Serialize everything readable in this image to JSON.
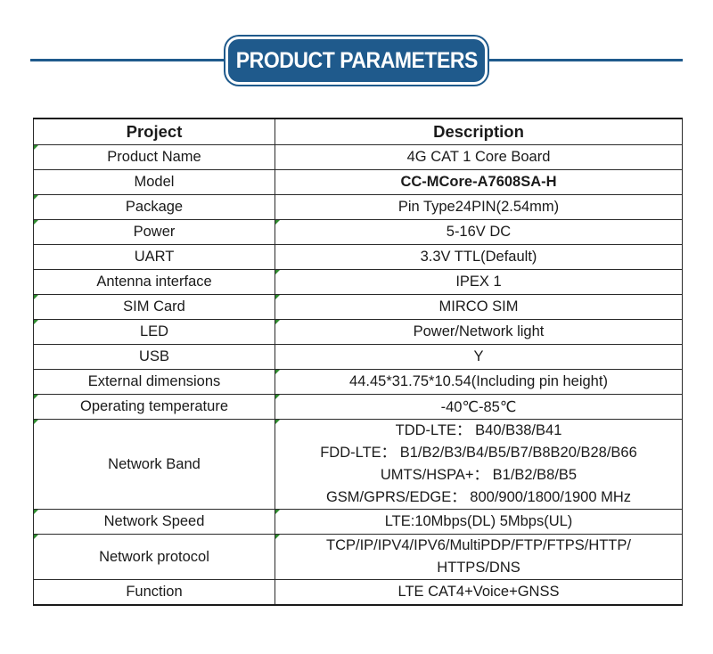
{
  "header": {
    "title": "PRODUCT PARAMETERS"
  },
  "table": {
    "columns": [
      "Project",
      "Description"
    ],
    "rows": [
      {
        "project": "Product Name",
        "description": [
          "4G CAT 1 Core Board"
        ]
      },
      {
        "project": "Model",
        "description": [
          "CC-MCore-A7608SA-H"
        ],
        "bold": true
      },
      {
        "project": "Package",
        "description": [
          "Pin Type24PIN(2.54mm)"
        ]
      },
      {
        "project": "Power",
        "description": [
          "5-16V DC"
        ]
      },
      {
        "project": "UART",
        "description": [
          "3.3V TTL(Default)"
        ]
      },
      {
        "project": "Antenna interface",
        "description": [
          "IPEX 1"
        ]
      },
      {
        "project": "SIM Card",
        "description": [
          "MIRCO SIM"
        ]
      },
      {
        "project": "LED",
        "description": [
          "Power/Network light"
        ]
      },
      {
        "project": "USB",
        "description": [
          "Y"
        ]
      },
      {
        "project": "External dimensions",
        "description": [
          "44.45*31.75*10.54(Including pin height)"
        ]
      },
      {
        "project": "Operating temperature",
        "description": [
          "-40℃-85℃"
        ]
      },
      {
        "project": "Network Band",
        "description": [
          "TDD-LTE：  B40/B38/B41",
          "FDD-LTE：  B1/B2/B3/B4/B5/B7/B8B20/B28/B66",
          "UMTS/HSPA+：  B1/B2/B8/B5",
          "GSM/GPRS/EDGE：  800/900/1800/1900 MHz"
        ]
      },
      {
        "project": "Network Speed",
        "description": [
          "LTE:10Mbps(DL)  5Mbps(UL)"
        ]
      },
      {
        "project": "Network protocol",
        "description": [
          "TCP/IP/IPV4/IPV6/MultiPDP/FTP/FTPS/HTTP/",
          "HTTPS/DNS"
        ]
      },
      {
        "project": "Function",
        "description": [
          "LTE CAT4+Voice+GNSS"
        ]
      }
    ]
  },
  "colors": {
    "accent": "#1f5a8c",
    "corner_mark": "#2e8b2e"
  }
}
